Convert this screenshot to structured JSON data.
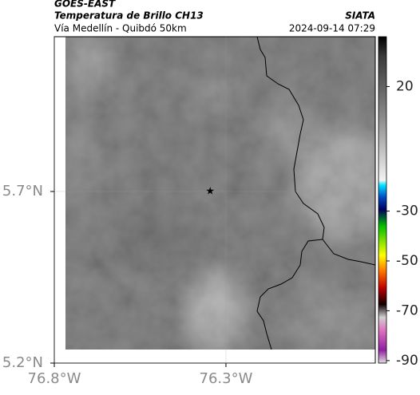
{
  "chart_data": {
    "type": "map",
    "title": "GOES-EAST",
    "subtitle": "Temperatura de Brillo CH13",
    "region": "Vía Medellín - Quibdó 50km",
    "source": "SIATA",
    "timestamp": "2024-09-14 07:29",
    "xlim": [
      -76.8,
      -75.865
    ],
    "ylim": [
      5.2,
      6.151
    ],
    "xticks": [
      {
        "value": -76.8,
        "label": "76.8°W"
      },
      {
        "value": -76.3,
        "label": "76.3°W"
      }
    ],
    "yticks": [
      {
        "value": 5.2,
        "label": "5.2°N"
      },
      {
        "value": 5.7,
        "label": "5.7°N"
      }
    ],
    "grid": true,
    "marker": {
      "lon": -76.346,
      "lat": 5.7
    },
    "clim": [
      40,
      -91
    ],
    "cticks": [
      20,
      -30,
      -50,
      -70,
      -90
    ]
  }
}
